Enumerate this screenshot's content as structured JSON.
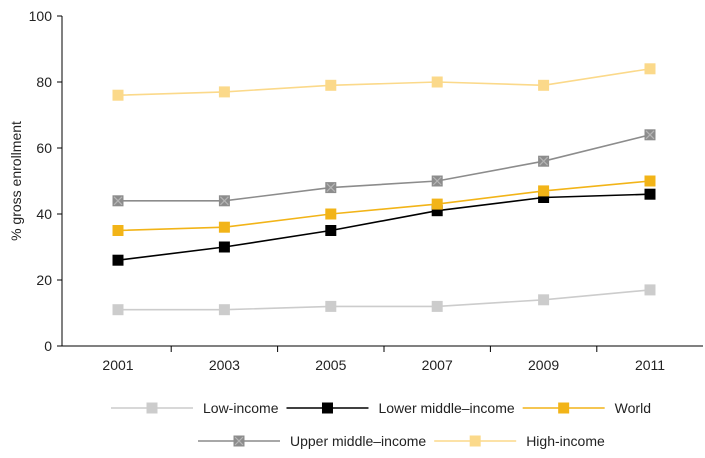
{
  "chart_data": {
    "type": "line",
    "title": "",
    "xlabel": "",
    "ylabel": "% gross enrollment",
    "x": [
      2001,
      2003,
      2005,
      2007,
      2009,
      2011
    ],
    "x_tick_labels": [
      "2001",
      "2003",
      "2005",
      "2007",
      "2009",
      "2011"
    ],
    "ylim": [
      0,
      100
    ],
    "y_ticks": [
      0,
      20,
      40,
      60,
      80,
      100
    ],
    "y_tick_labels": [
      "0",
      "20",
      "40",
      "60",
      "80",
      "100"
    ],
    "grid": false,
    "legend_position": "bottom",
    "series": [
      {
        "name": "Low-income",
        "color": "#cccccc",
        "marker": "square",
        "values": [
          11,
          11,
          12,
          12,
          14,
          17
        ]
      },
      {
        "name": "Lower middle–income",
        "color": "#000000",
        "marker": "square",
        "values": [
          26,
          30,
          35,
          41,
          45,
          46
        ]
      },
      {
        "name": "World",
        "color": "#f2b418",
        "marker": "square",
        "values": [
          35,
          36,
          40,
          43,
          47,
          50
        ]
      },
      {
        "name": "Upper middle–income",
        "color": "#8c8c8c",
        "marker": "square-x",
        "values": [
          44,
          44,
          48,
          50,
          56,
          64
        ]
      },
      {
        "name": "High-income",
        "color": "#fbd98a",
        "marker": "square",
        "values": [
          76,
          77,
          79,
          80,
          79,
          84
        ]
      }
    ]
  }
}
